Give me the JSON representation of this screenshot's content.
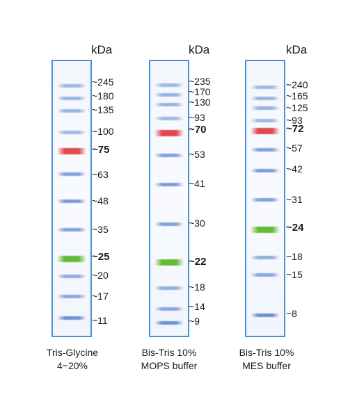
{
  "unit_label": "kDa",
  "colors": {
    "frame": "#4a90d9",
    "blue": "#5b87cf",
    "red": "#e2474f",
    "green": "#62bb34"
  },
  "ladders": [
    {
      "caption_line1": "Tris-Glycine",
      "caption_line2": "4~20%",
      "markers": [
        {
          "label": "~245",
          "color": "blue",
          "bold": false
        },
        {
          "label": "~180",
          "color": "blue",
          "bold": false
        },
        {
          "label": "~135",
          "color": "blue",
          "bold": false
        },
        {
          "label": "~100",
          "color": "blue",
          "bold": false
        },
        {
          "label": "~75",
          "color": "red",
          "bold": true
        },
        {
          "label": "~63",
          "color": "blue",
          "bold": false
        },
        {
          "label": "~48",
          "color": "blue",
          "bold": false
        },
        {
          "label": "~35",
          "color": "blue",
          "bold": false
        },
        {
          "label": "~25",
          "color": "green",
          "bold": true
        },
        {
          "label": "~20",
          "color": "blue",
          "bold": false
        },
        {
          "label": "~17",
          "color": "blue",
          "bold": false
        },
        {
          "label": "~11",
          "color": "blue",
          "bold": false
        }
      ]
    },
    {
      "caption_line1": "Bis-Tris 10%",
      "caption_line2": "MOPS buffer",
      "markers": [
        {
          "label": "~235",
          "color": "blue",
          "bold": false
        },
        {
          "label": "~170",
          "color": "blue",
          "bold": false
        },
        {
          "label": "~130",
          "color": "blue",
          "bold": false
        },
        {
          "label": "~93",
          "color": "blue",
          "bold": false
        },
        {
          "label": "~70",
          "color": "red",
          "bold": true
        },
        {
          "label": "~53",
          "color": "blue",
          "bold": false
        },
        {
          "label": "~41",
          "color": "blue",
          "bold": false
        },
        {
          "label": "~30",
          "color": "blue",
          "bold": false
        },
        {
          "label": "~22",
          "color": "green",
          "bold": true
        },
        {
          "label": "~18",
          "color": "blue",
          "bold": false
        },
        {
          "label": "~14",
          "color": "blue",
          "bold": false
        },
        {
          "label": "~9",
          "color": "blue",
          "bold": false
        }
      ]
    },
    {
      "caption_line1": "Bis-Tris 10%",
      "caption_line2": "MES buffer",
      "markers": [
        {
          "label": "~240",
          "color": "blue",
          "bold": false
        },
        {
          "label": "~165",
          "color": "blue",
          "bold": false
        },
        {
          "label": "~125",
          "color": "blue",
          "bold": false
        },
        {
          "label": "~93",
          "color": "blue",
          "bold": false
        },
        {
          "label": "~72",
          "color": "red",
          "bold": true
        },
        {
          "label": "~57",
          "color": "blue",
          "bold": false
        },
        {
          "label": "~42",
          "color": "blue",
          "bold": false
        },
        {
          "label": "~31",
          "color": "blue",
          "bold": false
        },
        {
          "label": "~24",
          "color": "green",
          "bold": true
        },
        {
          "label": "~18",
          "color": "blue",
          "bold": false
        },
        {
          "label": "~15",
          "color": "blue",
          "bold": false
        },
        {
          "label": "~8",
          "color": "blue",
          "bold": false
        }
      ]
    }
  ]
}
